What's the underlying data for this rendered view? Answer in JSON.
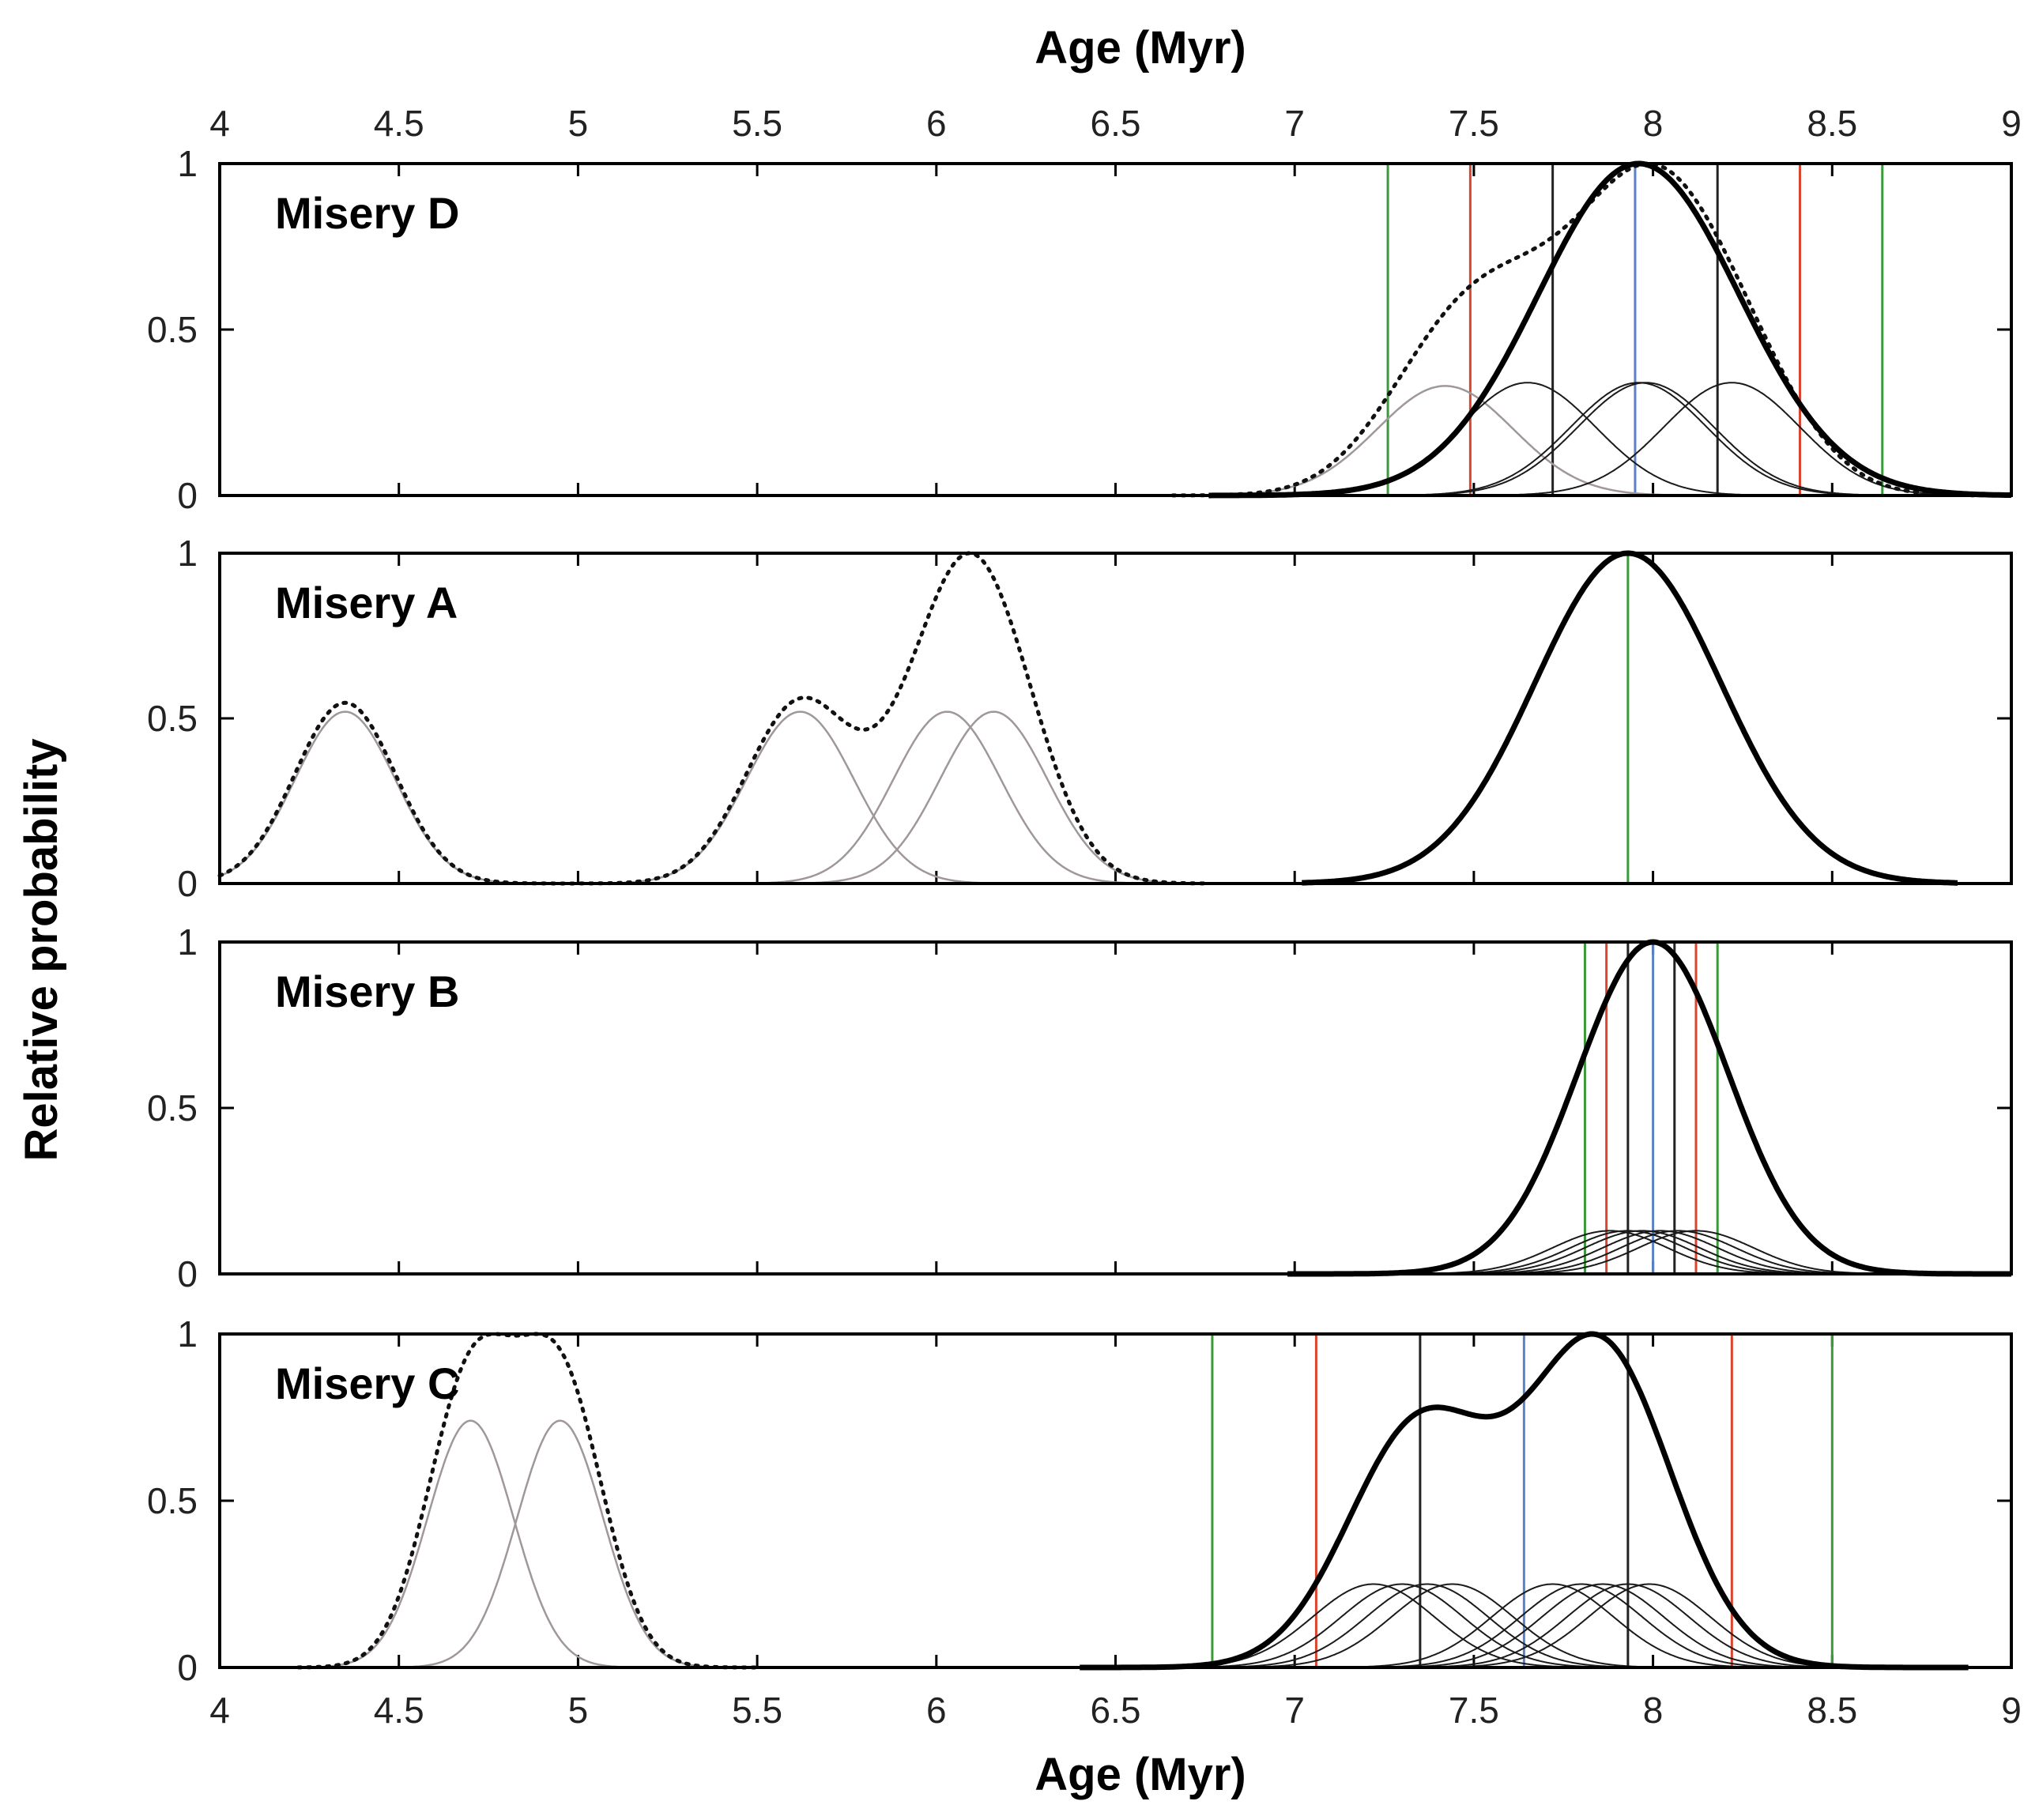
{
  "chart_data": {
    "type": "line",
    "top_axis_title": "Age (Myr)",
    "xlabel": "Age (Myr)",
    "ylabel": "Relative probability",
    "xlim": [
      4,
      9
    ],
    "ylim": [
      0,
      1
    ],
    "x_ticks": [
      "4",
      "4.5",
      "5",
      "5.5",
      "6",
      "6.5",
      "7",
      "7.5",
      "8",
      "8.5",
      "9"
    ],
    "y_ticks": [
      "0",
      "0.5",
      "1"
    ],
    "colors": {
      "summed_curve": "#000000",
      "component_curve": "#1a1a1a",
      "excluded_component": "#a09898",
      "dotted_curve": "#111111",
      "green_line": "#3a9a3a",
      "red_line": "#d9452e",
      "blue_line": "#5b82c8",
      "black_line": "#222222"
    },
    "panels": [
      {
        "label": "Misery D",
        "summed": {
          "mean": 7.96,
          "sigma": 0.28,
          "peak": 1.0,
          "x_range": [
            6.76,
            9.0
          ]
        },
        "dotted_peak": 1.0,
        "components": [
          {
            "mean": 7.65,
            "sigma": 0.19,
            "peak": 0.34
          },
          {
            "mean": 7.96,
            "sigma": 0.19,
            "peak": 0.34
          },
          {
            "mean": 7.98,
            "sigma": 0.19,
            "peak": 0.34
          },
          {
            "mean": 8.22,
            "sigma": 0.19,
            "peak": 0.34
          }
        ],
        "excluded_components": [
          {
            "mean": 7.42,
            "sigma": 0.19,
            "peak": 0.33
          }
        ],
        "vlines": [
          {
            "x": 7.26,
            "color": "green"
          },
          {
            "x": 7.49,
            "color": "red"
          },
          {
            "x": 7.72,
            "color": "black"
          },
          {
            "x": 7.95,
            "color": "blue"
          },
          {
            "x": 8.18,
            "color": "black"
          },
          {
            "x": 8.41,
            "color": "red"
          },
          {
            "x": 8.64,
            "color": "green"
          }
        ]
      },
      {
        "label": "Misery A",
        "summed": {
          "mean": 7.93,
          "sigma": 0.26,
          "peak": 1.0,
          "x_range": [
            7.02,
            8.85
          ]
        },
        "dotted_peak": 1.0,
        "components": [],
        "excluded_components": [
          {
            "mean": 4.35,
            "sigma": 0.14,
            "peak": 0.52
          },
          {
            "mean": 5.62,
            "sigma": 0.15,
            "peak": 0.52
          },
          {
            "mean": 6.03,
            "sigma": 0.15,
            "peak": 0.52
          },
          {
            "mean": 6.16,
            "sigma": 0.15,
            "peak": 0.52
          }
        ],
        "vlines": [
          {
            "x": 7.93,
            "color": "green"
          }
        ]
      },
      {
        "label": "Misery B",
        "summed": {
          "mean": 8.0,
          "sigma": 0.21,
          "peak": 1.0,
          "x_range": [
            6.98,
            9.0
          ]
        },
        "components": [
          {
            "mean": 7.88,
            "sigma": 0.16,
            "peak": 0.13
          },
          {
            "mean": 7.93,
            "sigma": 0.16,
            "peak": 0.13
          },
          {
            "mean": 7.97,
            "sigma": 0.16,
            "peak": 0.13
          },
          {
            "mean": 8.02,
            "sigma": 0.16,
            "peak": 0.13
          },
          {
            "mean": 8.07,
            "sigma": 0.16,
            "peak": 0.13
          },
          {
            "mean": 8.12,
            "sigma": 0.16,
            "peak": 0.13
          }
        ],
        "excluded_components": [],
        "vlines": [
          {
            "x": 7.81,
            "color": "green"
          },
          {
            "x": 7.87,
            "color": "red"
          },
          {
            "x": 7.93,
            "color": "black"
          },
          {
            "x": 8.0,
            "color": "blue"
          },
          {
            "x": 8.06,
            "color": "black"
          },
          {
            "x": 8.12,
            "color": "red"
          },
          {
            "x": 8.18,
            "color": "green"
          }
        ]
      },
      {
        "label": "Misery C",
        "summed_components": [
          {
            "mean": 7.35,
            "sigma": 0.2,
            "peak": 0.7
          },
          {
            "mean": 7.85,
            "sigma": 0.2,
            "peak": 0.93
          }
        ],
        "summed_range": [
          6.4,
          8.88
        ],
        "dotted_peak": 1.0,
        "components": [
          {
            "mean": 7.22,
            "sigma": 0.17,
            "peak": 0.25
          },
          {
            "mean": 7.3,
            "sigma": 0.17,
            "peak": 0.25
          },
          {
            "mean": 7.37,
            "sigma": 0.17,
            "peak": 0.25
          },
          {
            "mean": 7.44,
            "sigma": 0.17,
            "peak": 0.25
          },
          {
            "mean": 7.72,
            "sigma": 0.17,
            "peak": 0.25
          },
          {
            "mean": 7.8,
            "sigma": 0.17,
            "peak": 0.25
          },
          {
            "mean": 7.86,
            "sigma": 0.17,
            "peak": 0.25
          },
          {
            "mean": 7.93,
            "sigma": 0.17,
            "peak": 0.25
          },
          {
            "mean": 7.99,
            "sigma": 0.17,
            "peak": 0.25
          }
        ],
        "excluded_components": [
          {
            "mean": 4.7,
            "sigma": 0.12,
            "peak": 0.74
          },
          {
            "mean": 4.95,
            "sigma": 0.12,
            "peak": 0.74
          }
        ],
        "vlines": [
          {
            "x": 6.77,
            "color": "green"
          },
          {
            "x": 7.06,
            "color": "red"
          },
          {
            "x": 7.35,
            "color": "black"
          },
          {
            "x": 7.64,
            "color": "blue"
          },
          {
            "x": 7.93,
            "color": "black"
          },
          {
            "x": 8.22,
            "color": "red"
          },
          {
            "x": 8.5,
            "color": "green"
          }
        ]
      }
    ]
  }
}
